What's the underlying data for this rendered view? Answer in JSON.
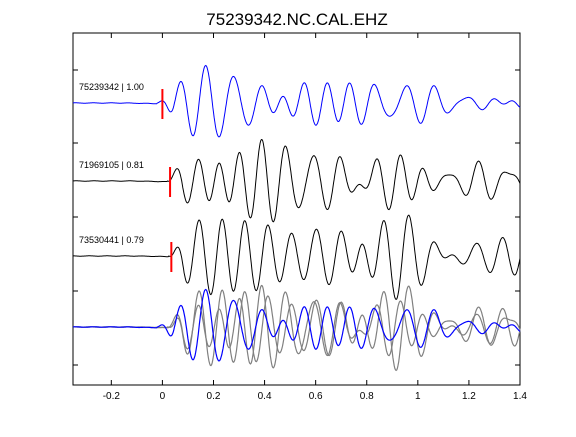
{
  "chart_data": {
    "type": "line",
    "title": "75239342.NC.CAL.EHZ",
    "xlabel": "",
    "ylabel": "",
    "xlim": [
      -0.35,
      1.4
    ],
    "x_ticks": [
      "-0.2",
      "0",
      "0.2",
      "0.4",
      "0.6",
      "0.8",
      "1",
      "1.2",
      "1.4"
    ],
    "x_tick_values": [
      -0.2,
      0,
      0.2,
      0.4,
      0.6,
      0.8,
      1.0,
      1.2,
      1.4
    ],
    "grid": false,
    "colors": {
      "reference": "#0000ff",
      "match": "#000000",
      "overlay": "#808080",
      "pick": "#ff0000",
      "axes": "#000000"
    },
    "series": [
      {
        "label": "75239342 | 1.00",
        "event_id": "75239342",
        "correlation": 1.0,
        "pick_time": 0.0,
        "color": "#0000ff",
        "onset": -0.02,
        "amplitude": 1.0,
        "seed": 7
      },
      {
        "label": "71969105 | 0.81",
        "event_id": "71969105",
        "correlation": 0.81,
        "pick_time": 0.03,
        "color": "#000000",
        "onset": 0.02,
        "amplitude": 1.05,
        "seed": 13
      },
      {
        "label": "73530441 | 0.79",
        "event_id": "73530441",
        "correlation": 0.79,
        "pick_time": 0.035,
        "color": "#000000",
        "onset": 0.025,
        "amplitude": 1.0,
        "seed": 21
      }
    ],
    "overlay": {
      "description": "stacked overlay of all traces",
      "traces": [
        "75239342",
        "71969105",
        "73530441"
      ]
    }
  }
}
